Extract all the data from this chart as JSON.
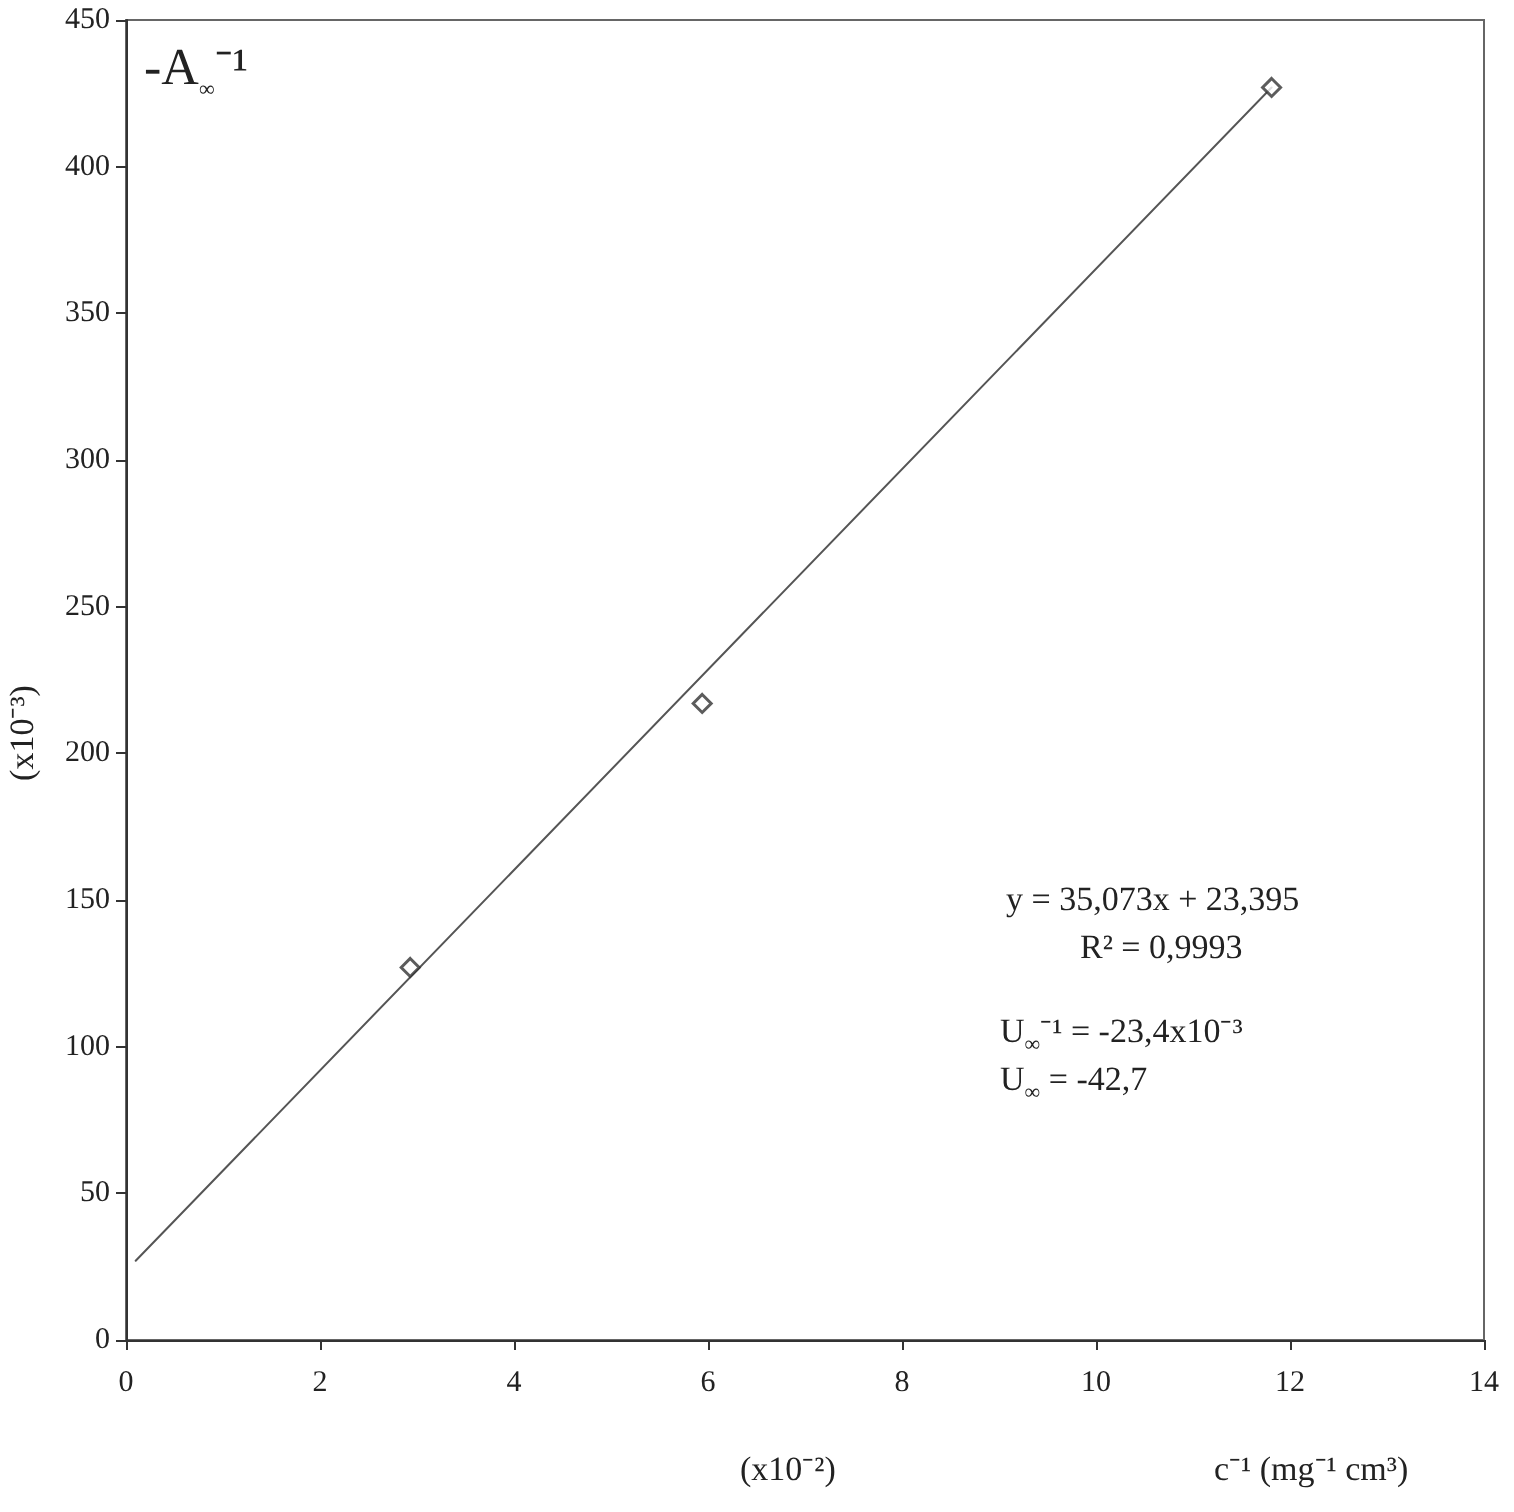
{
  "chart_data": {
    "type": "scatter",
    "xlabel": "(x10⁻²)",
    "ylabel": "(x10⁻³)",
    "x": [
      2.93,
      5.94,
      11.81
    ],
    "series": [
      {
        "color": "#333333",
        "marker": "diamond",
        "values": [
          127,
          217,
          427
        ]
      },
      {
        "type": "line",
        "color": "#555555",
        "marker": "none",
        "line_style": "solid",
        "x": [
          0.1,
          11.81
        ],
        "values": [
          27,
          427
        ]
      }
    ],
    "xlim": [
      0,
      14
    ],
    "xticks": [
      0,
      2,
      4,
      6,
      8,
      10,
      12,
      14
    ],
    "ylim": [
      0,
      450
    ],
    "yticks": [
      0,
      50,
      100,
      150,
      200,
      250,
      300,
      350,
      400,
      450
    ],
    "grid": false,
    "annotations": [
      "-A$_{∞}$⁻¹",
      "y = 35,073x + 23,395",
      "R² = 0,9993",
      "U$_{∞}$⁻¹ = -23,4x10⁻³",
      "U$_{∞}$ = -42,7",
      "c⁻¹ (mg⁻¹ cm³)"
    ]
  }
}
